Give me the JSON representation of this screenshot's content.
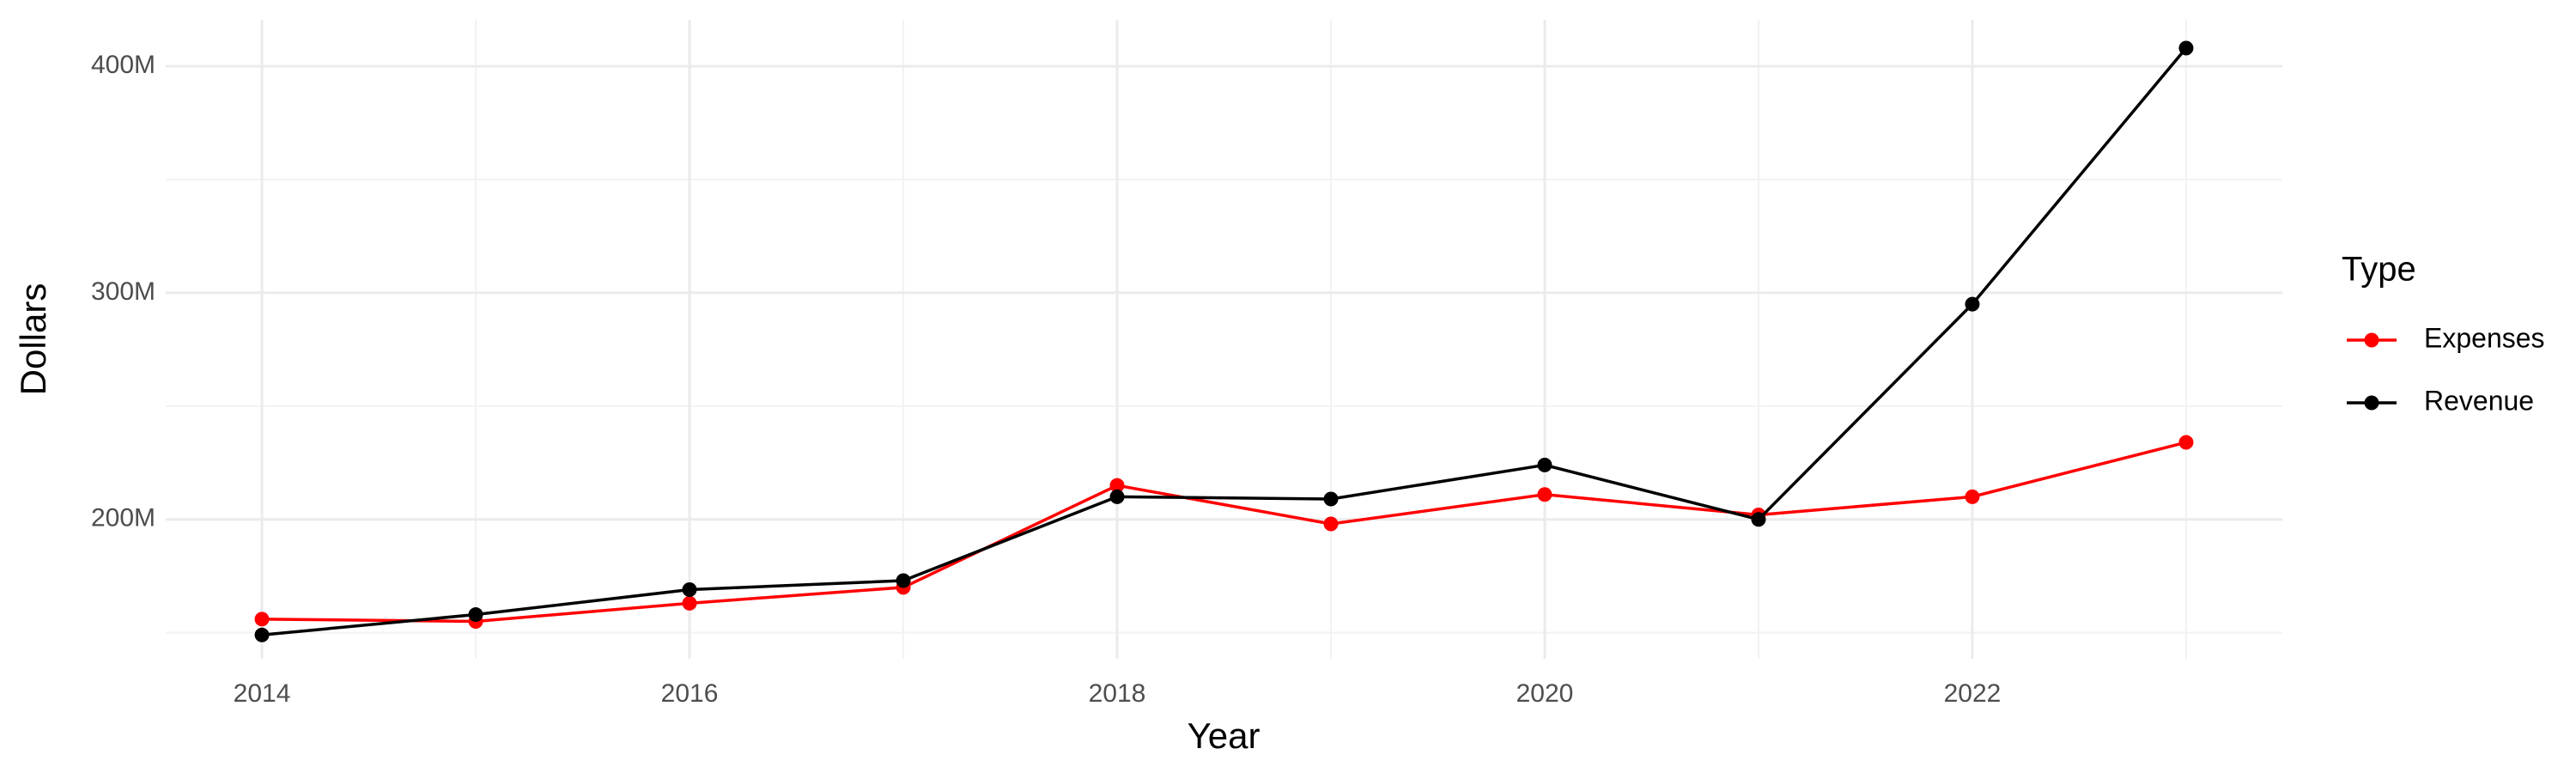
{
  "chart_data": {
    "type": "line",
    "x_label": "Year",
    "y_label": "Dollars",
    "x": [
      2014,
      2015,
      2016,
      2017,
      2018,
      2019,
      2020,
      2021,
      2022,
      2023
    ],
    "series": [
      {
        "name": "Expenses",
        "color": "#ff0000",
        "values": [
          156000000,
          155000000,
          163000000,
          170000000,
          215000000,
          198000000,
          211000000,
          202000000,
          210000000,
          234000000
        ]
      },
      {
        "name": "Revenue",
        "color": "#000000",
        "values": [
          149000000,
          158000000,
          169000000,
          173000000,
          210000000,
          209000000,
          224000000,
          200000000,
          295000000,
          408000000
        ]
      }
    ],
    "xlim": [
      2013.55,
      2023.45
    ],
    "xticks": [
      2014,
      2016,
      2018,
      2020,
      2022
    ],
    "ylim": [
      138500000,
      420500000
    ],
    "yticks": [
      {
        "value": 200000000,
        "label": "200M"
      },
      {
        "value": 300000000,
        "label": "300M"
      },
      {
        "value": 400000000,
        "label": "400M"
      }
    ],
    "grid": true,
    "legend_title": "Type",
    "legend_position": "right"
  }
}
